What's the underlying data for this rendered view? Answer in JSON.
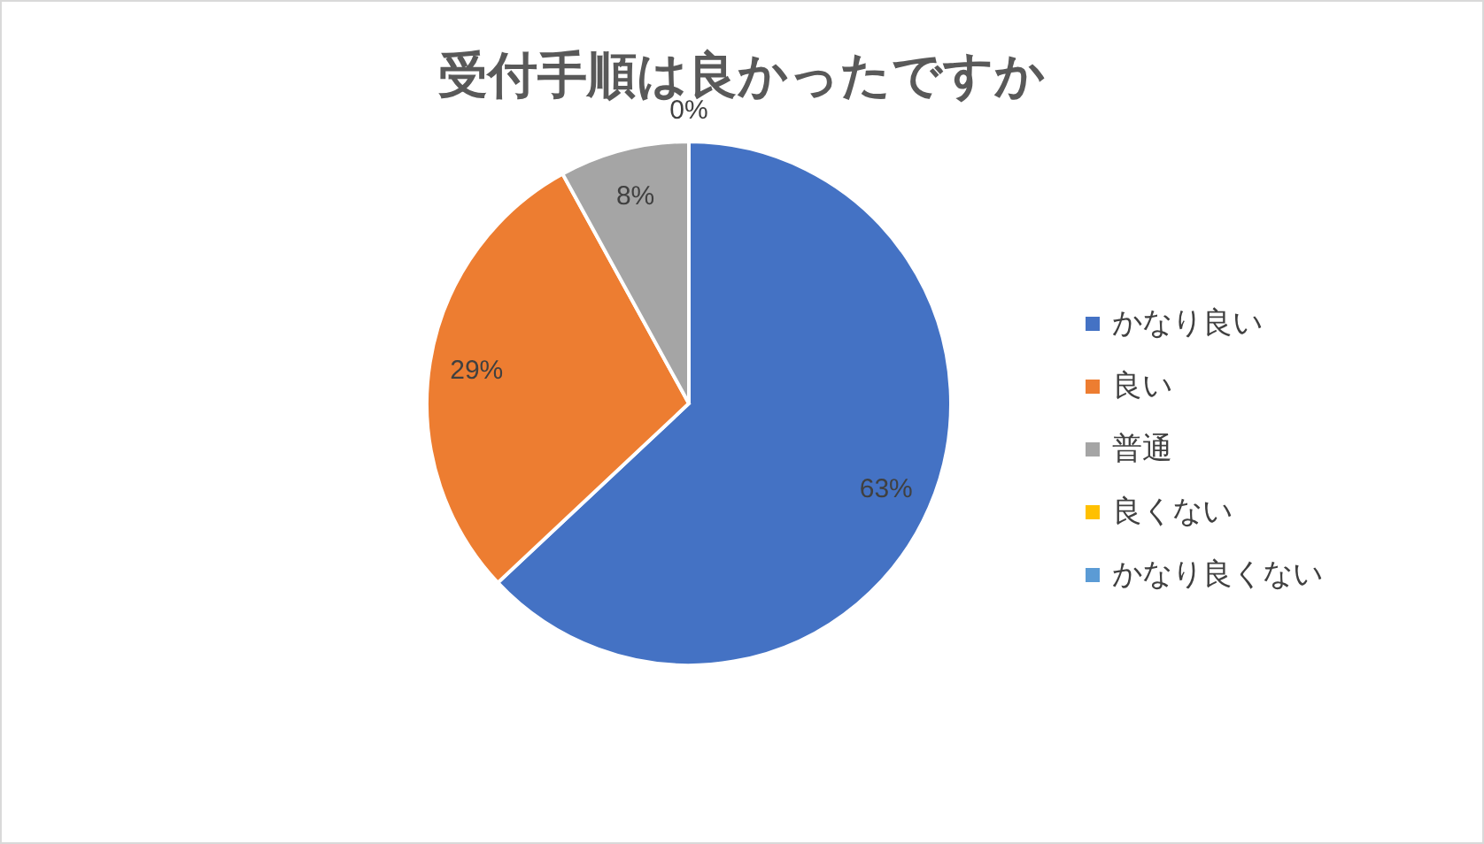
{
  "chart_data": {
    "type": "pie",
    "title": "受付手順は良かったですか",
    "categories": [
      "かなり良い",
      "良い",
      "普通",
      "良くない",
      "かなり良くない"
    ],
    "values": [
      63,
      29,
      8,
      0,
      0
    ],
    "colors": [
      "#4472c4",
      "#ed7d31",
      "#a5a5a5",
      "#ffc000",
      "#5b9bd5"
    ],
    "value_labels": [
      "63%",
      "29%",
      "8%",
      "0%",
      null
    ],
    "legend": "right"
  }
}
